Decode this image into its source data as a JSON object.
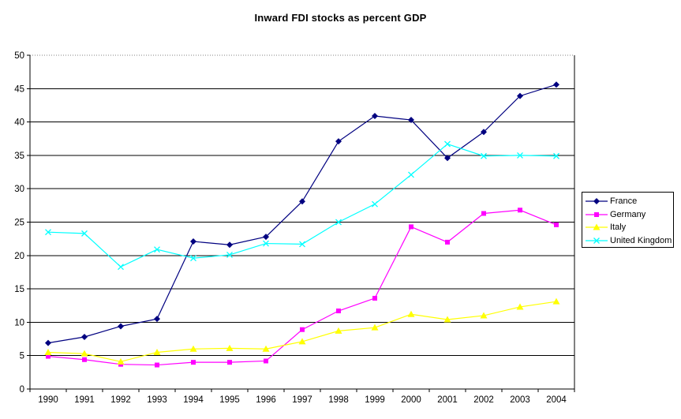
{
  "chart_data": {
    "type": "line",
    "title": "Inward FDI stocks as percent GDP",
    "categories": [
      "1990",
      "1991",
      "1992",
      "1993",
      "1994",
      "1995",
      "1996",
      "1997",
      "1998",
      "1999",
      "2000",
      "2001",
      "2002",
      "2003",
      "2004"
    ],
    "series": [
      {
        "name": "France",
        "color": "#000080",
        "marker": "diamond",
        "values": [
          6.9,
          7.8,
          9.4,
          10.5,
          22.1,
          21.6,
          22.8,
          28.1,
          37.1,
          40.9,
          40.3,
          34.6,
          38.5,
          43.9,
          45.6
        ]
      },
      {
        "name": "Germany",
        "color": "#FF00FF",
        "marker": "square",
        "values": [
          4.9,
          4.4,
          3.7,
          3.6,
          4.0,
          4.0,
          4.2,
          8.9,
          11.7,
          13.6,
          24.3,
          22.0,
          26.3,
          26.8,
          24.6
        ]
      },
      {
        "name": "Italy",
        "color": "#FFFF00",
        "marker": "triangle",
        "values": [
          5.5,
          5.3,
          4.1,
          5.5,
          6.0,
          6.1,
          6.0,
          7.1,
          8.7,
          9.2,
          11.2,
          10.4,
          11.0,
          12.3,
          13.1
        ]
      },
      {
        "name": "United Kingdom",
        "color": "#00FFFF",
        "marker": "x",
        "values": [
          23.5,
          23.3,
          18.3,
          20.9,
          19.6,
          20.1,
          21.8,
          21.7,
          25.0,
          27.7,
          32.1,
          36.7,
          34.9,
          35.0,
          34.9
        ]
      }
    ],
    "ylim": [
      0,
      50
    ],
    "ytick_step": 5,
    "grid": true,
    "legend_position": "right",
    "axis_color": "#000000",
    "gridline_color": "#000000",
    "top_gridline_color": "#808080",
    "background_color": "#FFFFFF"
  }
}
